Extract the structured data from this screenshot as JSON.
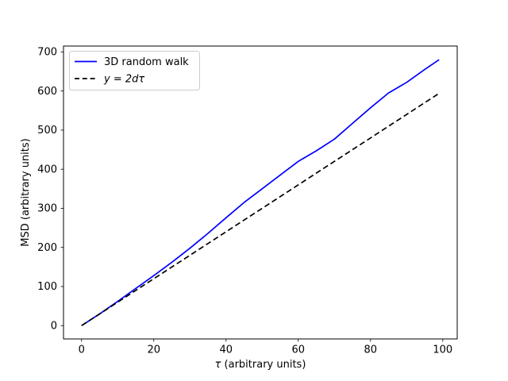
{
  "figure": {
    "background_color": "#ffffff",
    "axes_edge_color": "#000000"
  },
  "labels": {
    "xlabel_tau": "τ",
    "xlabel_rest": " (arbitrary units)",
    "ylabel": "MSD (arbitrary units)"
  },
  "legend": {
    "position": "upper-left",
    "border_color": "#cccccc",
    "background_color": "#ffffff"
  },
  "chart_data": {
    "type": "line",
    "title": "",
    "xlabel": "τ (arbitrary units)",
    "ylabel": "MSD (arbitrary units)",
    "xlim": [
      -5,
      104
    ],
    "ylim": [
      -34,
      715
    ],
    "xticks": [
      0,
      20,
      40,
      60,
      80,
      100
    ],
    "yticks": [
      0,
      100,
      200,
      300,
      400,
      500,
      600,
      700
    ],
    "grid": false,
    "legend_position": "upper-left",
    "x": [
      0,
      5,
      10,
      15,
      20,
      25,
      30,
      35,
      40,
      45,
      50,
      55,
      60,
      65,
      70,
      75,
      80,
      85,
      90,
      95,
      99
    ],
    "series": [
      {
        "name": "3D random walk",
        "color": "#0000ff",
        "style": "solid",
        "italic": false,
        "values": [
          0,
          30,
          62,
          95,
          128,
          162,
          198,
          236,
          276,
          315,
          350,
          385,
          420,
          447,
          477,
          517,
          557,
          595,
          622,
          655,
          680
        ]
      },
      {
        "name": "y = 2dτ",
        "color": "#000000",
        "style": "dashed",
        "italic": true,
        "values": [
          0,
          30,
          60,
          90,
          120,
          150,
          180,
          210,
          240,
          270,
          300,
          330,
          360,
          390,
          420,
          450,
          480,
          510,
          540,
          570,
          594
        ]
      }
    ]
  }
}
